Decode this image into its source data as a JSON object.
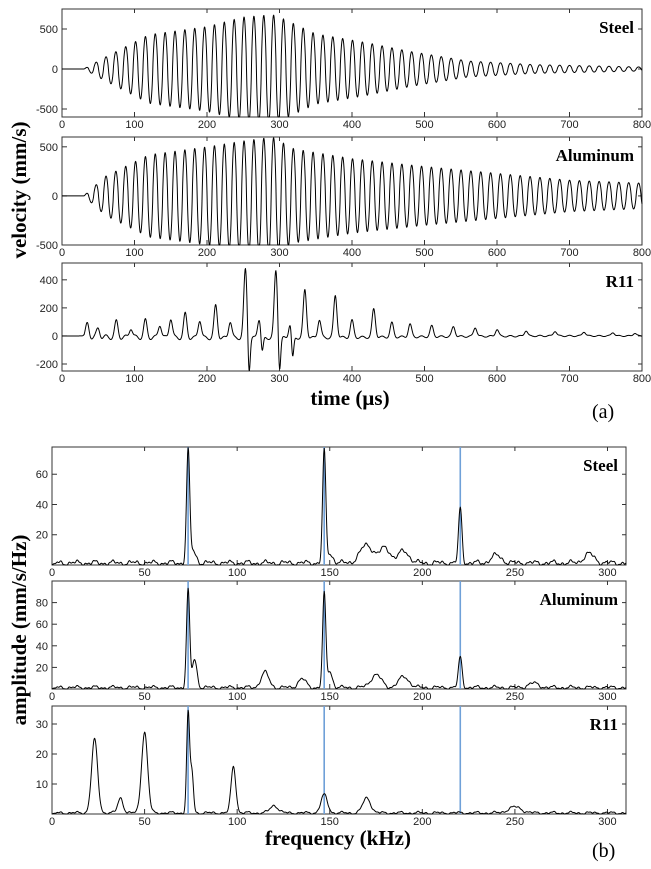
{
  "figure": {
    "subfigure_labels": [
      "(a)",
      "(b)"
    ]
  },
  "colors": {
    "trace": "#000000",
    "marker_lines": "#6fa0d8",
    "frame": "#333333"
  },
  "chart_data": [
    {
      "type": "line",
      "id": "time-domain",
      "xlabel": "time (µs)",
      "ylabel": "velocity (mm/s)",
      "xlim": [
        0,
        800
      ],
      "x_ticks": [
        0,
        100,
        200,
        300,
        400,
        500,
        600,
        700,
        800
      ],
      "panels": [
        {
          "name": "Steel",
          "ylim": [
            -600,
            750
          ],
          "y_ticks": [
            -500,
            0,
            500
          ],
          "signal": {
            "onset": 30,
            "carrier_frequency_khz": 73.5,
            "envelope": [
              [
                0,
                0
              ],
              [
                30,
                0
              ],
              [
                60,
                150
              ],
              [
                120,
                430
              ],
              [
                200,
                530
              ],
              [
                250,
                650
              ],
              [
                290,
                680
              ],
              [
                300,
                650
              ],
              [
                350,
                440
              ],
              [
                420,
                330
              ],
              [
                480,
                220
              ],
              [
                560,
                100
              ],
              [
                650,
                55
              ],
              [
                800,
                25
              ]
            ]
          }
        },
        {
          "name": "Aluminum",
          "ylim": [
            -500,
            600
          ],
          "y_ticks": [
            -500,
            0,
            500
          ],
          "signal": {
            "onset": 30,
            "carrier_frequency_khz": 73.5,
            "envelope": [
              [
                0,
                0
              ],
              [
                30,
                0
              ],
              [
                60,
                200
              ],
              [
                120,
                420
              ],
              [
                200,
                500
              ],
              [
                250,
                560
              ],
              [
                290,
                600
              ],
              [
                320,
                480
              ],
              [
                400,
                380
              ],
              [
                500,
                300
              ],
              [
                600,
                230
              ],
              [
                700,
                160
              ],
              [
                800,
                130
              ]
            ]
          }
        },
        {
          "name": "R11",
          "ylim": [
            -250,
            520
          ],
          "y_ticks": [
            -200,
            0,
            200,
            400
          ],
          "pulses": [
            [
              35,
              90
            ],
            [
              50,
              60
            ],
            [
              75,
              110
            ],
            [
              95,
              70
            ],
            [
              115,
              120
            ],
            [
              135,
              95
            ],
            [
              150,
              140
            ],
            [
              170,
              170
            ],
            [
              190,
              130
            ],
            [
              212,
              230
            ],
            [
              232,
              120
            ],
            [
              253,
              490
            ],
            [
              272,
              140
            ],
            [
              295,
              480
            ],
            [
              315,
              110
            ],
            [
              335,
              340
            ],
            [
              355,
              130
            ],
            [
              377,
              300
            ],
            [
              400,
              120
            ],
            [
              430,
              200
            ],
            [
              455,
              100
            ],
            [
              480,
              90
            ],
            [
              510,
              75
            ],
            [
              540,
              70
            ],
            [
              570,
              65
            ],
            [
              600,
              50
            ],
            [
              640,
              40
            ],
            [
              680,
              35
            ],
            [
              720,
              30
            ],
            [
              760,
              25
            ],
            [
              790,
              20
            ]
          ],
          "negative_spikes": [
            [
              258,
              -260
            ],
            [
              300,
              -250
            ],
            [
              276,
              -120
            ],
            [
              318,
              -180
            ]
          ]
        }
      ]
    },
    {
      "type": "line",
      "id": "frequency-domain",
      "xlabel": "frequency (kHz)",
      "ylabel": "amplitude (mm/s/Hz)",
      "xlim": [
        0,
        310
      ],
      "x_ticks": [
        0,
        50,
        100,
        150,
        200,
        250,
        300
      ],
      "marker_lines_x": [
        73.5,
        147,
        220.5
      ],
      "panels": [
        {
          "name": "Steel",
          "ylim": [
            0,
            78
          ],
          "y_ticks": [
            20,
            40,
            60
          ],
          "peaks": [
            [
              73.5,
              72,
              1.2
            ],
            [
              147,
              73,
              1.2
            ],
            [
              220.5,
              36,
              1.3
            ],
            [
              76,
              8,
              2.5
            ],
            [
              150,
              6,
              2.5
            ],
            [
              170,
              12,
              5
            ],
            [
              180,
              10,
              4
            ],
            [
              190,
              8,
              4
            ],
            [
              240,
              5,
              4
            ],
            [
              290,
              6,
              4
            ]
          ],
          "noise": 3
        },
        {
          "name": "Aluminum",
          "ylim": [
            0,
            100
          ],
          "y_ticks": [
            20,
            40,
            60,
            80
          ],
          "peaks": [
            [
              73.5,
              90,
              1.2
            ],
            [
              147,
              86,
              1.2
            ],
            [
              220.5,
              28,
              1.4
            ],
            [
              77,
              26,
              1.8
            ],
            [
              150,
              15,
              2
            ],
            [
              115,
              14,
              3
            ],
            [
              175,
              12,
              4
            ],
            [
              190,
              10,
              4
            ],
            [
              135,
              8,
              3
            ],
            [
              260,
              4,
              4
            ]
          ],
          "noise": 3
        },
        {
          "name": "R11",
          "ylim": [
            0,
            36
          ],
          "y_ticks": [
            10,
            20,
            30
          ],
          "peaks": [
            [
              23,
              24.5,
              2.3
            ],
            [
              50,
              27,
              2.3
            ],
            [
              73.5,
              33,
              1.1
            ],
            [
              75.5,
              14,
              1.2
            ],
            [
              98,
              15.5,
              1.8
            ],
            [
              147,
              6,
              2.5
            ],
            [
              170,
              5,
              3
            ],
            [
              37,
              5,
              2
            ],
            [
              120,
              2.5,
              3
            ],
            [
              250,
              2,
              5
            ]
          ],
          "noise": 0.8
        }
      ]
    }
  ]
}
